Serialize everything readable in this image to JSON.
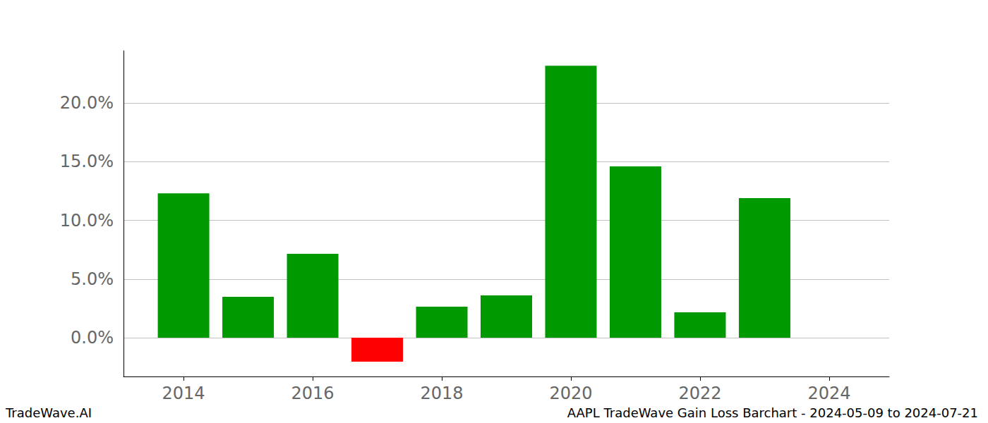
{
  "chart_data": {
    "type": "bar",
    "title": "AAPL TradeWave Gain Loss Barchart - 2024-05-09 to 2024-07-21",
    "annotations": [
      "TradeWave.AI"
    ],
    "x": [
      2014,
      2015,
      2016,
      2017,
      2018,
      2019,
      2020,
      2021,
      2022,
      2023
    ],
    "values": [
      12.3,
      3.48,
      7.15,
      -2.04,
      2.64,
      3.6,
      23.18,
      14.6,
      2.16,
      11.9
    ],
    "colors": [
      "#009900",
      "#009900",
      "#009900",
      "#ff0000",
      "#009900",
      "#009900",
      "#009900",
      "#009900",
      "#009900",
      "#009900"
    ],
    "xlim": [
      2013.07,
      2024.93
    ],
    "xticks": [
      2014,
      2016,
      2018,
      2020,
      2022,
      2024
    ],
    "ylim": [
      -3.3,
      24.45
    ],
    "yticks": [
      {
        "value": 0,
        "label": "0.0%"
      },
      {
        "value": 5,
        "label": "5.0%"
      },
      {
        "value": 10,
        "label": "10.0%"
      },
      {
        "value": 15,
        "label": "15.0%"
      },
      {
        "value": 20,
        "label": "20.0%"
      }
    ],
    "grid": true
  }
}
